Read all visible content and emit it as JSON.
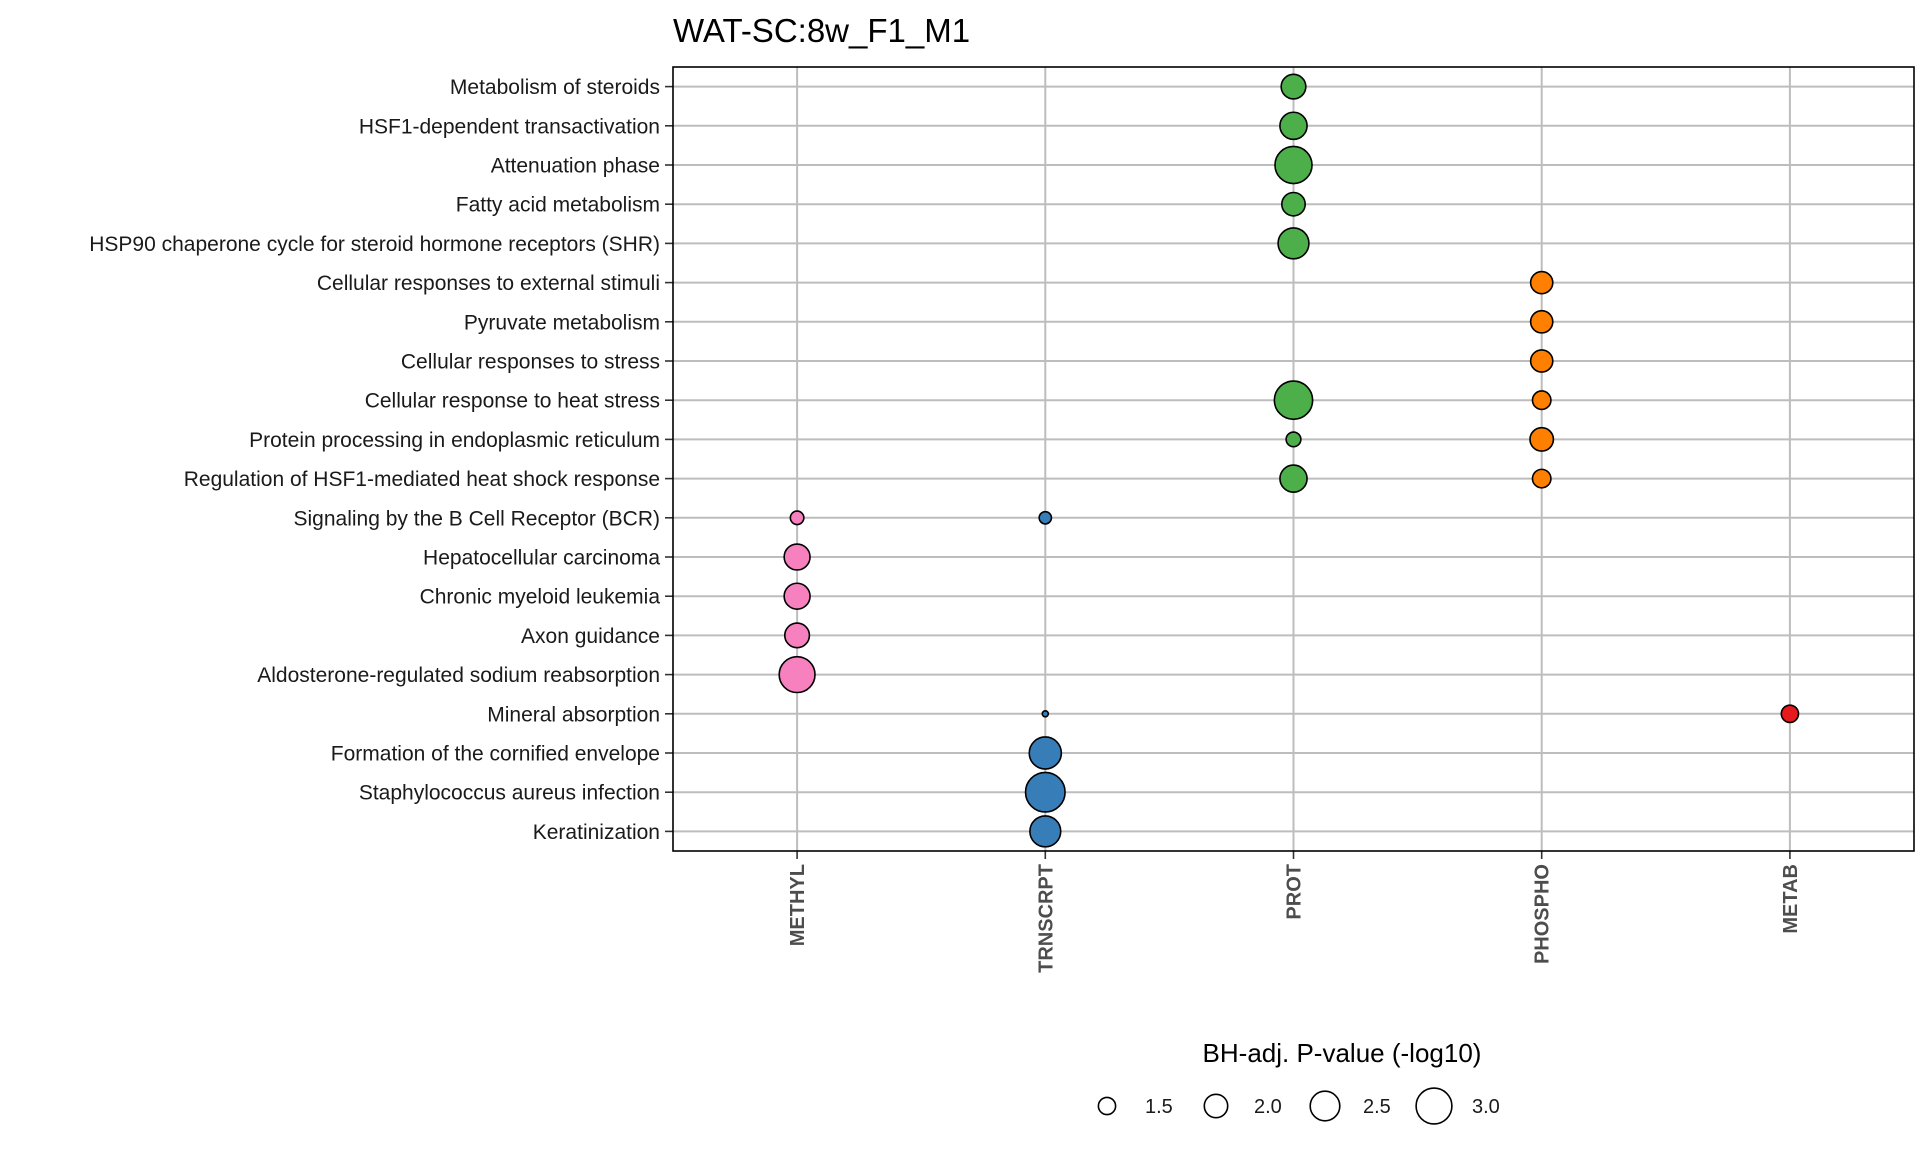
{
  "chart_data": {
    "type": "scatter",
    "title": "WAT-SC:8w_F1_M1",
    "categories_x": [
      "METHYL",
      "TRNSCRPT",
      "PROT",
      "PHOSPHO",
      "METAB"
    ],
    "categories_y": [
      "Metabolism of steroids",
      "HSF1-dependent transactivation",
      "Attenuation phase",
      "Fatty acid metabolism",
      "HSP90 chaperone cycle for steroid hormone receptors (SHR)",
      "Cellular responses to external stimuli",
      "Pyruvate metabolism",
      "Cellular responses to stress",
      "Cellular response to heat stress",
      "Protein processing in endoplasmic reticulum",
      "Regulation of HSF1-mediated heat shock response",
      "Signaling by the B Cell Receptor (BCR)",
      "Hepatocellular carcinoma",
      "Chronic myeloid leukemia",
      "Axon guidance",
      "Aldosterone-regulated sodium reabsorption",
      "Mineral absorption",
      "Formation of the cornified envelope",
      "Staphylococcus aureus infection",
      "Keratinization"
    ],
    "colors": {
      "METHYL": "#f781bf",
      "TRNSCRPT": "#377eb8",
      "PROT": "#4daf4a",
      "PHOSPHO": "#ff7f00",
      "METAB": "#e41a1c"
    },
    "points": [
      {
        "y": "Metabolism of steroids",
        "x": "PROT",
        "value": 2.1
      },
      {
        "y": "HSF1-dependent transactivation",
        "x": "PROT",
        "value": 2.3
      },
      {
        "y": "Attenuation phase",
        "x": "PROT",
        "value": 3.1
      },
      {
        "y": "Fatty acid metabolism",
        "x": "PROT",
        "value": 2.0
      },
      {
        "y": "HSP90 chaperone cycle for steroid hormone receptors (SHR)",
        "x": "PROT",
        "value": 2.6
      },
      {
        "y": "Cellular responses to external stimuli",
        "x": "PHOSPHO",
        "value": 1.9
      },
      {
        "y": "Pyruvate metabolism",
        "x": "PHOSPHO",
        "value": 1.9
      },
      {
        "y": "Cellular responses to stress",
        "x": "PHOSPHO",
        "value": 1.9
      },
      {
        "y": "Cellular response to heat stress",
        "x": "PROT",
        "value": 3.2
      },
      {
        "y": "Cellular response to heat stress",
        "x": "PHOSPHO",
        "value": 1.6
      },
      {
        "y": "Protein processing in endoplasmic reticulum",
        "x": "PROT",
        "value": 1.3
      },
      {
        "y": "Protein processing in endoplasmic reticulum",
        "x": "PHOSPHO",
        "value": 2.0
      },
      {
        "y": "Regulation of HSF1-mediated heat shock response",
        "x": "PROT",
        "value": 2.3
      },
      {
        "y": "Regulation of HSF1-mediated heat shock response",
        "x": "PHOSPHO",
        "value": 1.6
      },
      {
        "y": "Signaling by the B Cell Receptor (BCR)",
        "x": "METHYL",
        "value": 1.2
      },
      {
        "y": "Signaling by the B Cell Receptor (BCR)",
        "x": "TRNSCRPT",
        "value": 1.1
      },
      {
        "y": "Hepatocellular carcinoma",
        "x": "METHYL",
        "value": 2.2
      },
      {
        "y": "Chronic myeloid leukemia",
        "x": "METHYL",
        "value": 2.2
      },
      {
        "y": "Axon guidance",
        "x": "METHYL",
        "value": 2.1
      },
      {
        "y": "Aldosterone-regulated sodium reabsorption",
        "x": "METHYL",
        "value": 3.0
      },
      {
        "y": "Mineral absorption",
        "x": "TRNSCRPT",
        "value": 0.6
      },
      {
        "y": "Mineral absorption",
        "x": "METAB",
        "value": 1.5
      },
      {
        "y": "Formation of the cornified envelope",
        "x": "TRNSCRPT",
        "value": 2.7
      },
      {
        "y": "Staphylococcus aureus infection",
        "x": "TRNSCRPT",
        "value": 3.3
      },
      {
        "y": "Keratinization",
        "x": "TRNSCRPT",
        "value": 2.6
      }
    ],
    "legend": {
      "title": "BH-adj. P-value (-log10)",
      "values": [
        1.5,
        2.0,
        2.5,
        3.0
      ],
      "labels": [
        "1.5",
        "2.0",
        "2.5",
        "3.0"
      ],
      "placement": "bottom"
    },
    "grid": true
  }
}
